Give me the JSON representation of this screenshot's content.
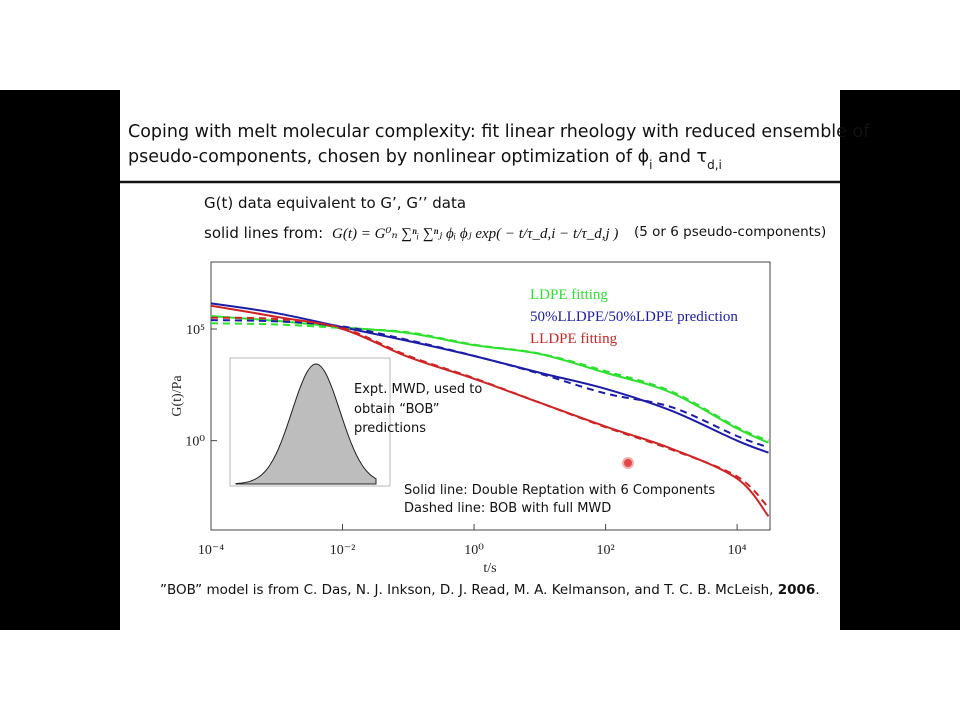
{
  "slide": {
    "title_line1": "Coping with melt molecular complexity: fit linear rheology with reduced ensemble of",
    "title_line2": [
      {
        "text": "pseudo-components, chosen by nonlinear optimization of ",
        "sub": false
      },
      {
        "text": "ϕ",
        "sub": false
      },
      {
        "text": "i",
        "sub": true
      },
      {
        "text": " and ",
        "sub": false
      },
      {
        "text": "τ",
        "sub": false
      },
      {
        "text": "d,i",
        "sub": true
      }
    ],
    "line1": "G(t) data equivalent to G’, G’’ data",
    "line2_lead": "solid lines from:",
    "formula": "G(t) = G⁰ₙ ∑ⁿᵢ ∑ⁿⱼ ϕᵢ ϕⱼ exp( − t/τ_d,i − t/τ_d,j )",
    "line2_note": "(5 or 6  pseudo-components)",
    "inset_note": [
      "Expt. MWD, used to",
      "obtain “BOB”",
      "predictions"
    ],
    "line_notes": [
      "Solid line: Double Reptation with 6 Components",
      "Dashed line: BOB with full MWD"
    ],
    "footnote": "”BOB” model is from C. Das, N. J. Inkson, D. J. Read, M. A. Kelmanson, and T. C. B. McLeish, ",
    "footnote_year": "2006",
    "footnote_end": "."
  },
  "chart_data": {
    "type": "line",
    "xlabel": "t/s",
    "ylabel": "G(t)/Pa",
    "log_x": true,
    "log_y": true,
    "legend": "top-right",
    "x": [
      0.0001,
      0.001,
      0.01,
      0.1,
      1,
      10,
      100,
      1000,
      10000,
      30000
    ],
    "xlim": [
      0.0001,
      31623
    ],
    "ylim": [
      0.0001,
      100000000
    ],
    "xticks": [
      {
        "value": 0.0001,
        "label": "10⁻⁴"
      },
      {
        "value": 0.01,
        "label": "10⁻²"
      },
      {
        "value": 1,
        "label": "10⁰"
      },
      {
        "value": 100,
        "label": "10²"
      },
      {
        "value": 10000,
        "label": "10⁴"
      }
    ],
    "yticks": [
      {
        "value": 100000,
        "label": "10⁵"
      },
      {
        "value": 1,
        "label": "10⁰"
      }
    ],
    "series": [
      {
        "name": "LDPE fitting",
        "color": "#2ee02e",
        "dashed": false,
        "values": [
          380000,
          230000,
          120000,
          66000,
          19000,
          7600,
          1100,
          140,
          3.5,
          0.81
        ]
      },
      {
        "name": "50%LLDPE/50%LDPE prediction",
        "color": "#1c1ca8",
        "dashed": false,
        "values": [
          1400000,
          510000,
          120000,
          29000,
          6200,
          1100,
          210,
          22,
          1.0,
          0.29
        ]
      },
      {
        "name": "LLDPE fitting",
        "color": "#d02424",
        "dashed": false,
        "values": [
          1100000,
          350000,
          100000,
          5600,
          590,
          50,
          4.3,
          0.44,
          0.02,
          0.00041
        ]
      },
      {
        "color": "#2ee02e",
        "dashed": true,
        "values": [
          180000,
          160000,
          110000,
          71000,
          20000,
          7900,
          1300,
          160,
          4.0,
          1.0
        ]
      },
      {
        "color": "#1c1ca8",
        "dashed": true,
        "values": [
          250000,
          220000,
          130000,
          32000,
          6300,
          1000,
          130,
          32,
          1.6,
          0.5
        ]
      },
      {
        "color": "#d02424",
        "dashed": true,
        "values": [
          320000,
          280000,
          110000,
          6300,
          630,
          50,
          4.0,
          0.4,
          0.025,
          0.001
        ]
      }
    ]
  }
}
